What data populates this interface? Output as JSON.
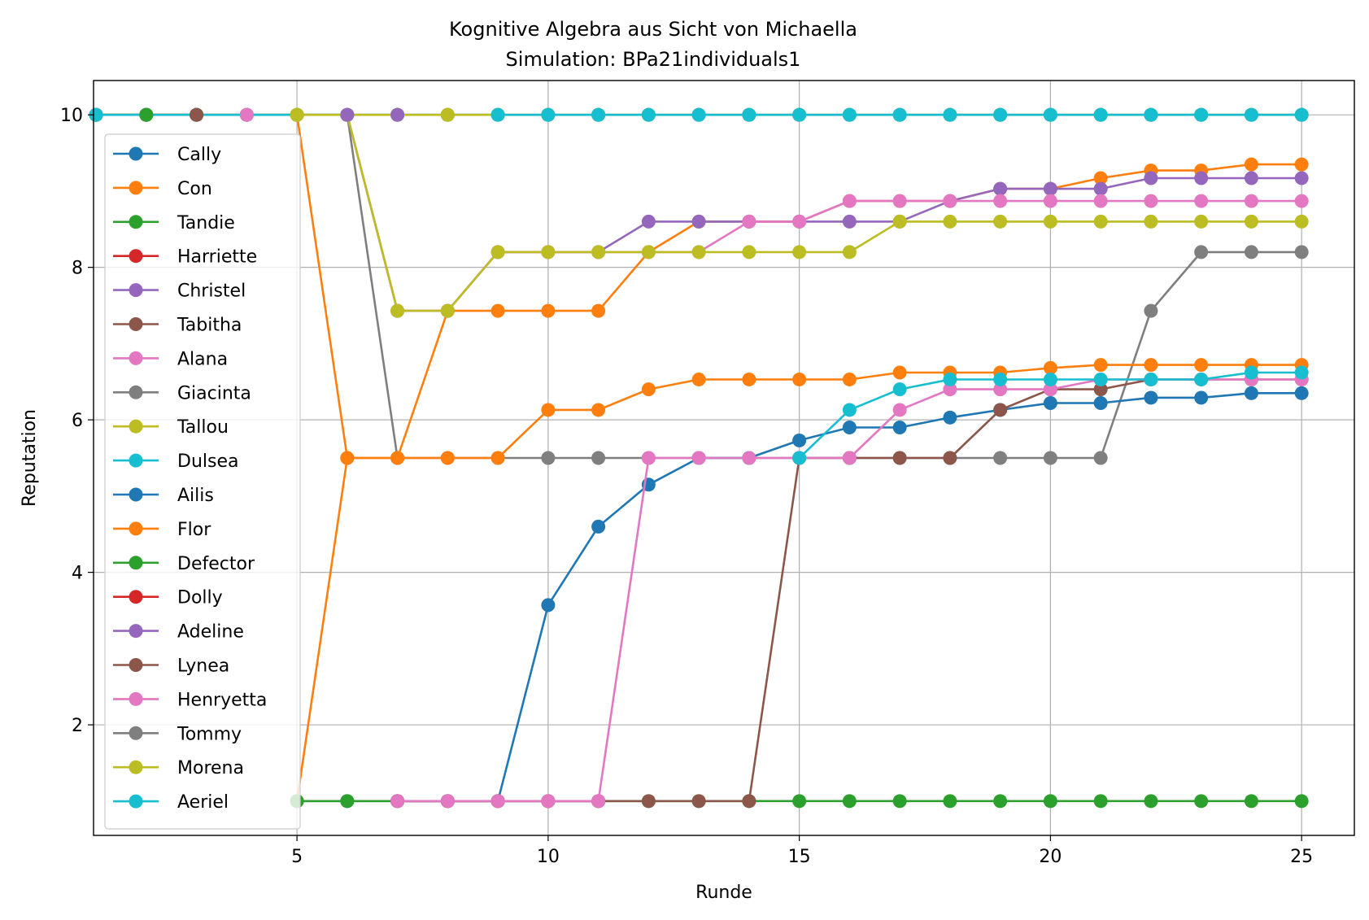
{
  "chart_data": {
    "type": "line",
    "title": "Kognitive Algebra aus Sicht von Michaella",
    "subtitle": "Simulation: BPa21individuals1",
    "xlabel": "Runde",
    "ylabel": "Reputation",
    "xlim": [
      0.95,
      26.05
    ],
    "ylim": [
      0.55,
      10.45
    ],
    "xticks": [
      5,
      10,
      15,
      20,
      25
    ],
    "yticks": [
      2,
      4,
      6,
      8,
      10
    ],
    "grid": true,
    "legend_position": "left",
    "series": [
      {
        "name": "Cally",
        "color": "#1f77b4",
        "x": [
          1
        ],
        "y": [
          10
        ]
      },
      {
        "name": "Con",
        "color": "#ff7f0e",
        "x": [
          1,
          2,
          3,
          4,
          5,
          6,
          7,
          8,
          9,
          10,
          11,
          12,
          13,
          14,
          15,
          16,
          17,
          18,
          19,
          20,
          21,
          22,
          23,
          24,
          25
        ],
        "y": [
          10,
          10,
          10,
          10,
          10,
          5.5,
          5.5,
          7.43,
          7.43,
          7.43,
          7.43,
          8.2,
          8.6,
          8.6,
          8.6,
          8.87,
          8.87,
          8.87,
          9.03,
          9.03,
          9.17,
          9.27,
          9.27,
          9.35,
          9.35
        ]
      },
      {
        "name": "Tandie",
        "color": "#2ca02c",
        "x": [
          1,
          2
        ],
        "y": [
          10,
          10
        ]
      },
      {
        "name": "Harriette",
        "color": "#d62728",
        "x": [
          1,
          2,
          3
        ],
        "y": [
          10,
          10,
          10
        ]
      },
      {
        "name": "Christel",
        "color": "#9467bd",
        "x": [
          1,
          2,
          3,
          4,
          5,
          6,
          7,
          8,
          9,
          10,
          11,
          12,
          13,
          14,
          15,
          16,
          17,
          18,
          19,
          20,
          21,
          22,
          23,
          24,
          25
        ],
        "y": [
          10,
          10,
          10,
          10,
          10,
          10,
          7.43,
          7.43,
          8.2,
          8.2,
          8.2,
          8.6,
          8.6,
          8.6,
          8.6,
          8.6,
          8.6,
          8.87,
          9.03,
          9.03,
          9.03,
          9.17,
          9.17,
          9.17,
          9.17
        ]
      },
      {
        "name": "Tabitha",
        "color": "#8c564b",
        "x": [
          1,
          2,
          3
        ],
        "y": [
          10,
          10,
          10
        ]
      },
      {
        "name": "Alana",
        "color": "#e377c2",
        "x": [
          1,
          2,
          3,
          4,
          5,
          6,
          7,
          8,
          9,
          10,
          11,
          12,
          13,
          14,
          15,
          16,
          17,
          18,
          19,
          20,
          21,
          22,
          23,
          24,
          25
        ],
        "y": [
          10,
          10,
          10,
          10,
          10,
          10,
          7.43,
          7.43,
          8.2,
          8.2,
          8.2,
          8.2,
          8.2,
          8.6,
          8.6,
          8.87,
          8.87,
          8.87,
          8.87,
          8.87,
          8.87,
          8.87,
          8.87,
          8.87,
          8.87
        ]
      },
      {
        "name": "Giacinta",
        "color": "#7f7f7f",
        "x": [
          1,
          2,
          3,
          4,
          5,
          6,
          7,
          8,
          9,
          10,
          11,
          12,
          13,
          14,
          15,
          16,
          17,
          18,
          19,
          20,
          21,
          22,
          23,
          24,
          25
        ],
        "y": [
          10,
          10,
          10,
          10,
          10,
          10,
          5.5,
          5.5,
          5.5,
          5.5,
          5.5,
          5.5,
          5.5,
          5.5,
          5.5,
          5.5,
          5.5,
          5.5,
          5.5,
          5.5,
          5.5,
          7.43,
          8.2,
          8.2,
          8.2
        ]
      },
      {
        "name": "Tallou",
        "color": "#bcbd22",
        "x": [
          1,
          2,
          3,
          4,
          5,
          6,
          7,
          8,
          9,
          10,
          11,
          12,
          13,
          14,
          15,
          16,
          17,
          18,
          19,
          20,
          21,
          22,
          23,
          24,
          25
        ],
        "y": [
          10,
          10,
          10,
          10,
          10,
          10,
          7.43,
          7.43,
          8.2,
          8.2,
          8.2,
          8.2,
          8.2,
          8.2,
          8.2,
          8.2,
          8.6,
          8.6,
          8.6,
          8.6,
          8.6,
          8.6,
          8.6,
          8.6,
          8.6
        ]
      },
      {
        "name": "Dulsea",
        "color": "#17becf",
        "x": [
          1,
          2,
          3,
          4,
          5,
          6,
          7,
          8,
          9,
          10,
          11,
          12,
          13,
          14,
          15,
          16,
          17,
          18,
          19,
          20,
          21,
          22,
          23,
          24,
          25
        ],
        "y": [
          10,
          10,
          10,
          10,
          10,
          10,
          10,
          10,
          10,
          10,
          10,
          10,
          10,
          10,
          10,
          10,
          10,
          10,
          10,
          10,
          10,
          10,
          10,
          10,
          10
        ]
      },
      {
        "name": "Ailis",
        "color": "#1f77b4",
        "x": [
          5,
          6,
          7,
          8,
          9,
          10,
          11,
          12,
          13,
          14,
          15,
          16,
          17,
          18,
          19,
          20,
          21,
          22,
          23,
          24,
          25
        ],
        "y": [
          1,
          1,
          1,
          1,
          1,
          3.57,
          4.6,
          5.15,
          5.5,
          5.5,
          5.73,
          5.9,
          5.9,
          6.03,
          6.13,
          6.22,
          6.22,
          6.29,
          6.29,
          6.35,
          6.35
        ]
      },
      {
        "name": "Flor",
        "color": "#ff7f0e",
        "x": [
          5,
          6,
          7,
          8,
          9,
          10,
          11,
          12,
          13,
          14,
          15,
          16,
          17,
          18,
          19,
          20,
          21,
          22,
          23,
          24,
          25
        ],
        "y": [
          1,
          5.5,
          5.5,
          5.5,
          5.5,
          6.13,
          6.13,
          6.4,
          6.53,
          6.53,
          6.53,
          6.53,
          6.62,
          6.62,
          6.62,
          6.68,
          6.72,
          6.72,
          6.72,
          6.72,
          6.72
        ]
      },
      {
        "name": "Defector",
        "color": "#2ca02c",
        "x": [
          5,
          6,
          7,
          8,
          9,
          10,
          11,
          12,
          13,
          14,
          15,
          16,
          17,
          18,
          19,
          20,
          21,
          22,
          23,
          24,
          25
        ],
        "y": [
          1,
          1,
          1,
          1,
          1,
          1,
          1,
          1,
          1,
          1,
          1,
          1,
          1,
          1,
          1,
          1,
          1,
          1,
          1,
          1,
          1
        ]
      },
      {
        "name": "Dolly",
        "color": "#d62728",
        "x": [
          7,
          8,
          9,
          10,
          11
        ],
        "y": [
          1,
          1,
          1,
          1,
          1
        ]
      },
      {
        "name": "Adeline",
        "color": "#9467bd",
        "x": [
          7,
          8,
          9,
          10,
          11
        ],
        "y": [
          1,
          1,
          1,
          1,
          1
        ]
      },
      {
        "name": "Lynea",
        "color": "#8c564b",
        "x": [
          7,
          8,
          9,
          10,
          11,
          12,
          13,
          14,
          15,
          16,
          17,
          18,
          19,
          20,
          21,
          22,
          23,
          24,
          25
        ],
        "y": [
          1,
          1,
          1,
          1,
          1,
          1,
          1,
          1,
          5.5,
          5.5,
          5.5,
          5.5,
          6.13,
          6.4,
          6.4,
          6.53,
          6.53,
          6.53,
          6.53
        ]
      },
      {
        "name": "Henryetta",
        "color": "#e377c2",
        "x": [
          7,
          8,
          9,
          10,
          11,
          12,
          13,
          14,
          15,
          16,
          17,
          18,
          19,
          20,
          21,
          22,
          23,
          24,
          25
        ],
        "y": [
          1,
          1,
          1,
          1,
          1,
          5.5,
          5.5,
          5.5,
          5.5,
          5.5,
          6.13,
          6.4,
          6.4,
          6.4,
          6.53,
          6.53,
          6.53,
          6.53,
          6.53
        ]
      },
      {
        "name": "Tommy",
        "color": "#7f7f7f",
        "x": [
          6,
          7,
          8,
          9,
          10,
          11,
          12,
          13,
          14,
          15,
          16,
          17,
          18,
          19,
          20,
          21,
          22,
          23,
          24,
          25
        ],
        "y": [
          10,
          10,
          10,
          10,
          10,
          10,
          10,
          10,
          10,
          10,
          10,
          10,
          10,
          10,
          10,
          10,
          10,
          10,
          10,
          10
        ]
      },
      {
        "name": "Morena",
        "color": "#bcbd22",
        "x": [
          5,
          6,
          7,
          8,
          9,
          10,
          11,
          12,
          13,
          14,
          15,
          16,
          17,
          18,
          19,
          20,
          21,
          22,
          23,
          24,
          25
        ],
        "y": [
          10,
          10,
          10,
          10,
          10,
          10,
          10,
          10,
          10,
          10,
          10,
          10,
          10,
          10,
          10,
          10,
          10,
          10,
          10,
          10,
          10
        ]
      },
      {
        "name": "Aeriel",
        "color": "#17becf",
        "x": [
          9,
          10,
          11,
          12,
          13,
          14,
          15,
          16,
          17,
          18,
          19,
          20,
          21,
          22,
          23,
          24,
          25
        ],
        "y": [
          10,
          10,
          10,
          10,
          10,
          10,
          10,
          10,
          10,
          10,
          10,
          10,
          10,
          10,
          10,
          10,
          10
        ]
      },
      {
        "name": "Michaella",
        "color": "#1f77b4",
        "x": [
          15,
          16,
          17,
          18,
          19,
          20,
          21,
          22,
          23,
          24,
          25
        ],
        "y": [
          5.5,
          6.13,
          6.4,
          6.53,
          6.53,
          6.53,
          6.53,
          6.53,
          6.53,
          6.62,
          6.62
        ],
        "legend": false,
        "draw_color": "#17becf"
      }
    ],
    "extra_markers": [
      {
        "color": "#2ca02c",
        "x": [
          2
        ],
        "y": [
          10
        ]
      },
      {
        "color": "#8c564b",
        "x": [
          3
        ],
        "y": [
          10
        ]
      },
      {
        "color": "#e377c2",
        "x": [
          4
        ],
        "y": [
          10
        ]
      },
      {
        "color": "#bcbd22",
        "x": [
          5
        ],
        "y": [
          10
        ]
      },
      {
        "color": "#9467bd",
        "x": [
          6,
          7
        ],
        "y": [
          10,
          10
        ]
      },
      {
        "color": "#bcbd22",
        "x": [
          8
        ],
        "y": [
          10
        ]
      }
    ]
  }
}
